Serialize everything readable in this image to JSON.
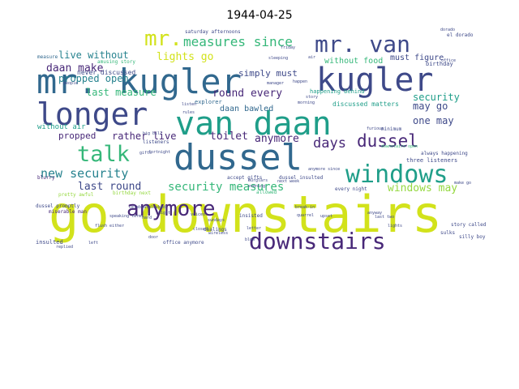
{
  "figure": {
    "title": "1944-04-25"
  },
  "colors": {
    "yellow": "#d2e21b",
    "lime": "#95d840",
    "green": "#35b779",
    "teal": "#1f9e89",
    "cyan": "#26828e",
    "blue": "#31688e",
    "indigo": "#3e4989",
    "purple": "#482878",
    "dark": "#440154"
  },
  "words": [
    {
      "text": "go downstairs",
      "color": "yellow"
    },
    {
      "text": "dussel",
      "color": "blue"
    },
    {
      "text": "mr. kugler",
      "color": "blue"
    },
    {
      "text": "kugler",
      "color": "indigo"
    },
    {
      "text": "longer",
      "color": "indigo"
    },
    {
      "text": "van daan",
      "color": "teal"
    },
    {
      "text": "windows",
      "color": "teal"
    },
    {
      "text": "anymore",
      "color": "purple"
    },
    {
      "text": "downstairs",
      "color": "purple"
    },
    {
      "text": "mr. van",
      "color": "indigo"
    },
    {
      "text": "mr.",
      "color": "yellow"
    },
    {
      "text": "talk",
      "color": "green"
    },
    {
      "text": "measures since",
      "color": "green"
    },
    {
      "text": "new security",
      "color": "cyan"
    },
    {
      "text": "dussel",
      "color": "purple"
    },
    {
      "text": "days",
      "color": "purple"
    },
    {
      "text": "security measures",
      "color": "green"
    },
    {
      "text": "windows may",
      "color": "lime"
    },
    {
      "text": "lights go",
      "color": "yellow"
    },
    {
      "text": "last round",
      "color": "indigo"
    },
    {
      "text": "round every",
      "color": "purple"
    },
    {
      "text": "daan make",
      "color": "purple"
    },
    {
      "text": "live without",
      "color": "cyan"
    },
    {
      "text": "propped open",
      "color": "cyan"
    },
    {
      "text": "simply must",
      "color": "indigo"
    },
    {
      "text": "toilet",
      "color": "purple"
    },
    {
      "text": "anymore",
      "color": "purple"
    },
    {
      "text": "rather live",
      "color": "purple"
    },
    {
      "text": "propped",
      "color": "purple"
    },
    {
      "text": "last measure",
      "color": "green"
    },
    {
      "text": "may go",
      "color": "indigo"
    },
    {
      "text": "security",
      "color": "teal"
    },
    {
      "text": "one may",
      "color": "indigo"
    },
    {
      "text": "without food",
      "color": "green"
    },
    {
      "text": "must figure",
      "color": "indigo"
    },
    {
      "text": "daan bawled",
      "color": "blue"
    },
    {
      "text": "without air",
      "color": "teal"
    },
    {
      "text": "discussed matters",
      "color": "teal"
    },
    {
      "text": "explorer",
      "color": "blue"
    },
    {
      "text": "never discussed",
      "color": "indigo"
    },
    {
      "text": "amusing story",
      "color": "green"
    },
    {
      "text": "happening behind",
      "color": "teal"
    },
    {
      "text": "three listeners",
      "color": "indigo"
    },
    {
      "text": "always happening",
      "color": "indigo"
    },
    {
      "text": "birthday",
      "color": "indigo"
    },
    {
      "text": "measure",
      "color": "blue"
    },
    {
      "text": "saturday afternoons",
      "color": "indigo"
    },
    {
      "text": "every night",
      "color": "indigo"
    },
    {
      "text": "dussel insulted",
      "color": "indigo"
    },
    {
      "text": "accept gifts",
      "color": "indigo"
    },
    {
      "text": "birthday next",
      "color": "lime"
    },
    {
      "text": "insisted",
      "color": "indigo"
    },
    {
      "text": "insulted",
      "color": "indigo"
    },
    {
      "text": "office anymore",
      "color": "indigo"
    },
    {
      "text": "miserable man",
      "color": "purple"
    },
    {
      "text": "silly boy",
      "color": "indigo"
    },
    {
      "text": "story called",
      "color": "indigo"
    },
    {
      "text": "blurry",
      "color": "purple"
    },
    {
      "text": "listeners",
      "color": "indigo"
    },
    {
      "text": "dussel promptly",
      "color": "indigo"
    },
    {
      "text": "sundays",
      "color": "indigo"
    },
    {
      "text": "dealings",
      "color": "indigo"
    },
    {
      "text": "el dorado",
      "color": "indigo"
    },
    {
      "text": "minimum",
      "color": "indigo"
    },
    {
      "text": "pretty awful",
      "color": "lime"
    },
    {
      "text": "allowed",
      "color": "green"
    },
    {
      "text": "people",
      "color": "indigo"
    },
    {
      "text": "speaking terms",
      "color": "indigo"
    },
    {
      "text": "flush either",
      "color": "indigo"
    },
    {
      "text": "celebrate",
      "color": "indigo"
    },
    {
      "text": "fortnight",
      "color": "indigo"
    },
    {
      "text": "gifts",
      "color": "indigo"
    },
    {
      "text": "big bill",
      "color": "indigo"
    },
    {
      "text": "night",
      "color": "indigo"
    },
    {
      "text": "hard",
      "color": "indigo"
    },
    {
      "text": "door",
      "color": "indigo"
    },
    {
      "text": "left",
      "color": "indigo"
    },
    {
      "text": "anyway",
      "color": "indigo"
    },
    {
      "text": "happen",
      "color": "indigo"
    },
    {
      "text": "sulks",
      "color": "indigo"
    },
    {
      "text": "last two",
      "color": "indigo"
    },
    {
      "text": "wireless",
      "color": "indigo"
    },
    {
      "text": "dorado",
      "color": "indigo"
    },
    {
      "text": "manager",
      "color": "indigo"
    },
    {
      "text": "sleeping",
      "color": "indigo"
    },
    {
      "text": "next week",
      "color": "indigo"
    },
    {
      "text": "evening",
      "color": "indigo"
    },
    {
      "text": "burglars",
      "color": "indigo"
    },
    {
      "text": "break-in",
      "color": "indigo"
    },
    {
      "text": "quarrel",
      "color": "indigo"
    },
    {
      "text": "lights",
      "color": "indigo"
    },
    {
      "text": "blow",
      "color": "indigo"
    },
    {
      "text": "office",
      "color": "indigo"
    },
    {
      "text": "morning",
      "color": "indigo"
    },
    {
      "text": "listen",
      "color": "indigo"
    },
    {
      "text": "replied",
      "color": "indigo"
    },
    {
      "text": "furious",
      "color": "indigo"
    },
    {
      "text": "friday",
      "color": "indigo"
    },
    {
      "text": "rules",
      "color": "indigo"
    },
    {
      "text": "locked",
      "color": "indigo"
    },
    {
      "text": "closed",
      "color": "indigo"
    },
    {
      "text": "letter",
      "color": "indigo"
    },
    {
      "text": "story",
      "color": "indigo"
    },
    {
      "text": "voices",
      "color": "indigo"
    },
    {
      "text": "upset",
      "color": "indigo"
    },
    {
      "text": "downstairs open",
      "color": "green"
    },
    {
      "text": "anymore since",
      "color": "indigo"
    },
    {
      "text": "make go",
      "color": "indigo"
    },
    {
      "text": "air",
      "color": "indigo"
    }
  ]
}
